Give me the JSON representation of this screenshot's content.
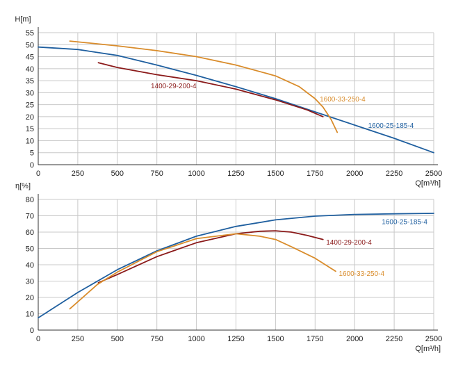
{
  "chart_data": [
    {
      "type": "line",
      "ylabel": "H[m]",
      "xlabel": "Q[m³/h]",
      "xlim": [
        0,
        2500
      ],
      "ylim": [
        0,
        55
      ],
      "xticks": [
        "0",
        "250",
        "500",
        "750",
        "1000",
        "1250",
        "1500",
        "1750",
        "2000",
        "2250",
        "2500"
      ],
      "yticks": [
        "0",
        "5",
        "10",
        "15",
        "20",
        "25",
        "30",
        "35",
        "40",
        "45",
        "50",
        "55"
      ],
      "grid": true,
      "series": [
        {
          "name": "1600-25-185-4",
          "color": "#1f5f9f",
          "x": [
            0,
            250,
            500,
            750,
            1000,
            1250,
            1500,
            1750,
            2000,
            2250,
            2500
          ],
          "y": [
            49,
            48,
            45.5,
            41.5,
            37.2,
            32.5,
            27.5,
            22,
            16.5,
            11,
            5
          ]
        },
        {
          "name": "1400-29-200-4",
          "color": "#8b1a1a",
          "x": [
            380,
            500,
            750,
            1000,
            1250,
            1500,
            1700,
            1800
          ],
          "y": [
            42.5,
            40.5,
            37.5,
            35,
            31.5,
            27,
            22.8,
            20
          ]
        },
        {
          "name": "1600-33-250-4",
          "color": "#d98c2b",
          "x": [
            200,
            500,
            750,
            1000,
            1250,
            1500,
            1650,
            1750,
            1800,
            1850,
            1890
          ],
          "y": [
            51.5,
            49.5,
            47.5,
            45,
            41.5,
            37,
            32.5,
            27.5,
            24,
            19,
            13.5
          ]
        }
      ]
    },
    {
      "type": "line",
      "ylabel": "η[%]",
      "xlabel": "Q[m³/h]",
      "xlim": [
        0,
        2500
      ],
      "ylim": [
        0,
        80
      ],
      "xticks": [
        "0",
        "250",
        "500",
        "750",
        "1000",
        "1250",
        "1500",
        "1750",
        "2000",
        "2250",
        "2500"
      ],
      "yticks": [
        "0",
        "10",
        "20",
        "30",
        "40",
        "50",
        "60",
        "70",
        "80"
      ],
      "grid": true,
      "series": [
        {
          "name": "1600-25-185-4",
          "color": "#1f5f9f",
          "x": [
            0,
            250,
            500,
            750,
            1000,
            1250,
            1500,
            1750,
            2000,
            2250,
            2500
          ],
          "y": [
            7.5,
            23,
            37,
            48.5,
            57.5,
            63.5,
            67.5,
            69.8,
            70.8,
            71.2,
            71.5
          ]
        },
        {
          "name": "1400-29-200-4",
          "color": "#8b1a1a",
          "x": [
            380,
            500,
            750,
            1000,
            1250,
            1400,
            1500,
            1600,
            1700,
            1800
          ],
          "y": [
            29,
            34,
            45,
            53.5,
            59,
            60.5,
            60.8,
            60,
            58,
            55.5
          ]
        },
        {
          "name": "1600-33-250-4",
          "color": "#d98c2b",
          "x": [
            200,
            375,
            500,
            750,
            1000,
            1250,
            1400,
            1500,
            1600,
            1750,
            1880
          ],
          "y": [
            13,
            28,
            35.5,
            48,
            56,
            59,
            57.5,
            55.5,
            51,
            44,
            36
          ]
        }
      ]
    }
  ]
}
